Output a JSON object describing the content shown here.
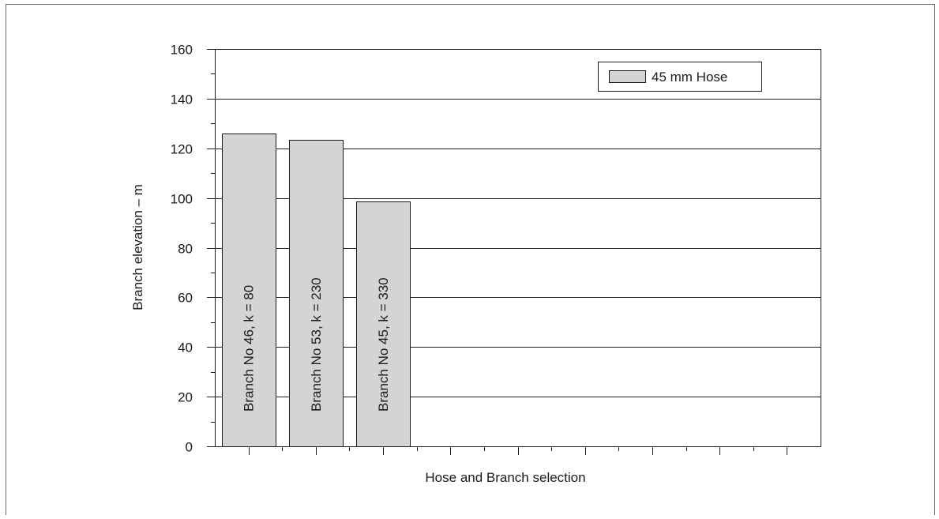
{
  "chart_data": {
    "type": "bar",
    "categories": [
      "Branch No 46, k = 80",
      "Branch No 53, k = 230",
      "Branch No 45, k = 330",
      "",
      "",
      "",
      "",
      "",
      ""
    ],
    "series": [
      {
        "name": "45 mm Hose",
        "values": [
          126,
          123.5,
          98.5,
          null,
          null,
          null,
          null,
          null,
          null
        ]
      }
    ],
    "xlabel": "Hose and Branch selection",
    "ylabel": "Branch elevation – m",
    "ylim": [
      0,
      160
    ],
    "yticks": [
      0,
      20,
      40,
      60,
      80,
      100,
      120,
      140,
      160
    ],
    "grid": true,
    "legend_position": "top-right",
    "colors": {
      "bar_fill": "#d4d4d4",
      "bar_stroke": "#1a1a1a",
      "grid": "#1a1a1a",
      "axis": "#1a1a1a",
      "frame": "#666666"
    }
  }
}
